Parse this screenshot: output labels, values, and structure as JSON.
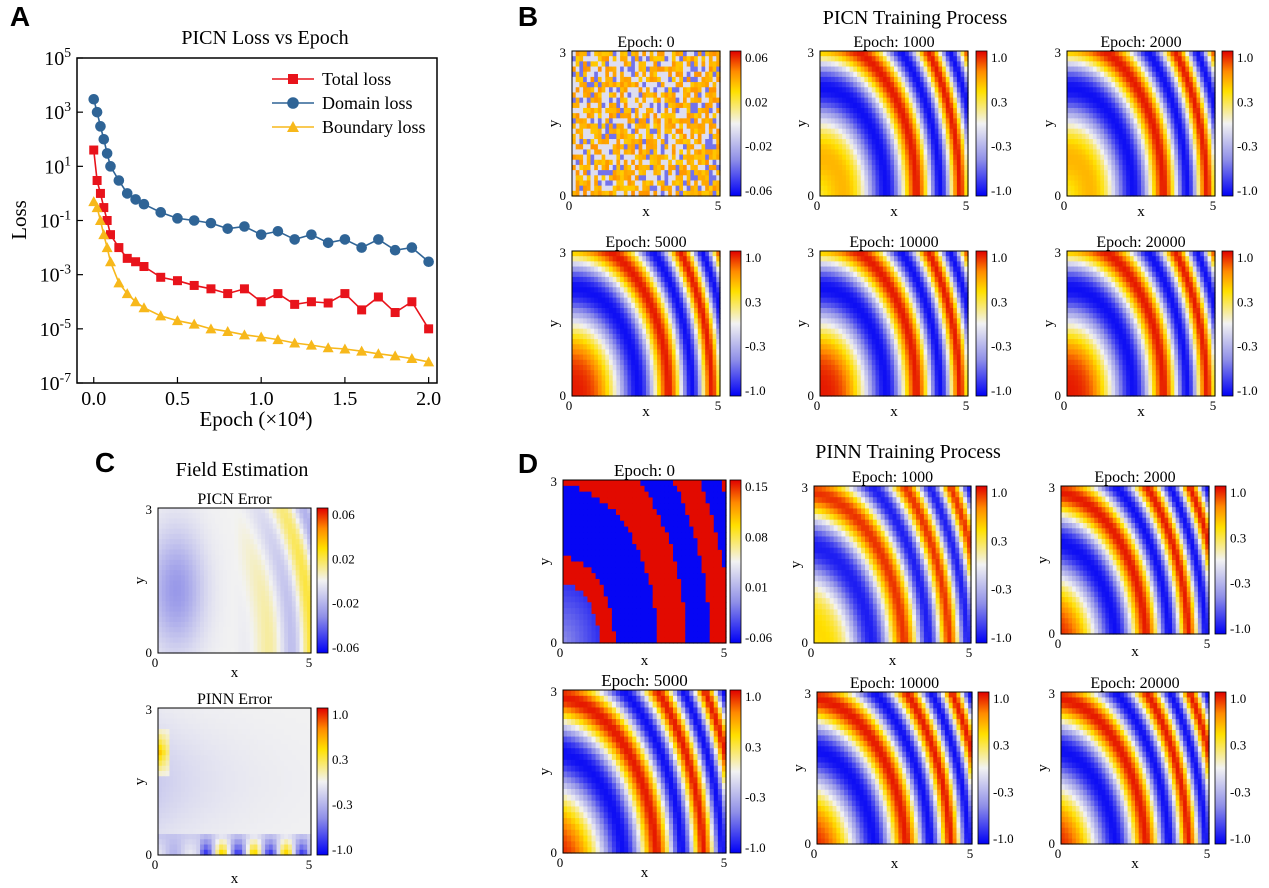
{
  "panel_labels": [
    "A",
    "B",
    "C",
    "D"
  ],
  "chart_data": [
    {
      "type": "line",
      "panel": "A",
      "title": "PICN Loss vs Epoch",
      "xlabel": "Epoch (×10⁴)",
      "ylabel": "Loss",
      "xlim": [
        -0.1,
        2.05
      ],
      "ylim_log10": [
        -7,
        5
      ],
      "y_scale": "log",
      "x_ticks": [
        "0.0",
        "0.5",
        "1.0",
        "1.5",
        "2.0"
      ],
      "y_ticks": [
        "10^5",
        "10^3",
        "10^1",
        "10^-1",
        "10^-3",
        "10^-5",
        "10^-7"
      ],
      "legend_position": "top-right",
      "series": [
        {
          "name": "Total loss",
          "color": "#e8131b",
          "marker": "square",
          "x": [
            0.0,
            0.02,
            0.04,
            0.06,
            0.08,
            0.1,
            0.15,
            0.2,
            0.25,
            0.3,
            0.4,
            0.5,
            0.6,
            0.7,
            0.8,
            0.9,
            1.0,
            1.1,
            1.2,
            1.3,
            1.4,
            1.5,
            1.6,
            1.7,
            1.8,
            1.9,
            2.0
          ],
          "y": [
            40,
            3,
            1,
            0.3,
            0.1,
            0.03,
            0.01,
            0.004,
            0.003,
            0.002,
            0.0008,
            0.0006,
            0.0004,
            0.0003,
            0.0002,
            0.0003,
            0.0001,
            0.0002,
            8e-05,
            0.0001,
            9e-05,
            0.0002,
            5e-05,
            0.00015,
            4e-05,
            0.0001,
            1e-05
          ]
        },
        {
          "name": "Domain loss",
          "color": "#2f6496",
          "marker": "circle",
          "x": [
            0.0,
            0.02,
            0.04,
            0.06,
            0.08,
            0.1,
            0.15,
            0.2,
            0.25,
            0.3,
            0.4,
            0.5,
            0.6,
            0.7,
            0.8,
            0.9,
            1.0,
            1.1,
            1.2,
            1.3,
            1.4,
            1.5,
            1.6,
            1.7,
            1.8,
            1.9,
            2.0
          ],
          "y": [
            3000,
            1000,
            300,
            100,
            30,
            10,
            3,
            1,
            0.6,
            0.4,
            0.2,
            0.12,
            0.1,
            0.08,
            0.05,
            0.06,
            0.03,
            0.04,
            0.02,
            0.03,
            0.015,
            0.02,
            0.01,
            0.02,
            0.008,
            0.01,
            0.003
          ]
        },
        {
          "name": "Boundary loss",
          "color": "#f7b81b",
          "marker": "triangle",
          "x": [
            0.0,
            0.02,
            0.04,
            0.06,
            0.08,
            0.1,
            0.15,
            0.2,
            0.25,
            0.3,
            0.4,
            0.5,
            0.6,
            0.7,
            0.8,
            0.9,
            1.0,
            1.1,
            1.2,
            1.3,
            1.4,
            1.5,
            1.6,
            1.7,
            1.8,
            1.9,
            2.0
          ],
          "y": [
            0.5,
            0.3,
            0.1,
            0.03,
            0.01,
            0.003,
            0.0005,
            0.0002,
            0.0001,
            6e-05,
            3e-05,
            2e-05,
            1.5e-05,
            1e-05,
            8e-06,
            6e-06,
            5e-06,
            4e-06,
            3e-06,
            2.5e-06,
            2e-06,
            1.8e-06,
            1.5e-06,
            1.2e-06,
            1e-06,
            8e-07,
            6e-07
          ]
        }
      ]
    },
    {
      "type": "heatmap",
      "panel": "B",
      "title": "PICN Training Process",
      "xlabel": "x",
      "ylabel": "y",
      "xlim": [
        0,
        5
      ],
      "ylim": [
        0,
        3
      ],
      "subplots": [
        {
          "title": "Epoch: 0",
          "pattern": "noise",
          "colorbar": [
            "0.06",
            "0.02",
            "-0.02",
            "-0.06"
          ]
        },
        {
          "title": "Epoch: 1000",
          "pattern": "wave_partial",
          "colorbar": [
            "1.0",
            "0.3",
            "-0.3",
            "-1.0"
          ]
        },
        {
          "title": "Epoch: 2000",
          "pattern": "wave_partial",
          "colorbar": [
            "1.0",
            "0.3",
            "-0.3",
            "-1.0"
          ]
        },
        {
          "title": "Epoch: 5000",
          "pattern": "wave",
          "colorbar": [
            "1.0",
            "0.3",
            "-0.3",
            "-1.0"
          ]
        },
        {
          "title": "Epoch: 10000",
          "pattern": "wave",
          "colorbar": [
            "1.0",
            "0.3",
            "-0.3",
            "-1.0"
          ]
        },
        {
          "title": "Epoch: 20000",
          "pattern": "wave",
          "colorbar": [
            "1.0",
            "0.3",
            "-0.3",
            "-1.0"
          ]
        }
      ]
    },
    {
      "type": "heatmap",
      "panel": "C",
      "title": "Field Estimation",
      "xlabel": "x",
      "ylabel": "y",
      "xlim": [
        0,
        5
      ],
      "ylim": [
        0,
        3
      ],
      "subplots": [
        {
          "title": "PICN Error",
          "pattern": "error_picn",
          "colorbar": [
            "0.06",
            "0.02",
            "-0.02",
            "-0.06"
          ]
        },
        {
          "title": "PINN Error",
          "pattern": "error_pinn",
          "colorbar": [
            "1.0",
            "0.3",
            "-0.3",
            "-1.0"
          ]
        }
      ]
    },
    {
      "type": "heatmap",
      "panel": "D",
      "title": "PINN Training Process",
      "xlabel": "x",
      "ylabel": "y",
      "xlim": [
        0,
        5
      ],
      "ylim": [
        0,
        3
      ],
      "subplots": [
        {
          "title": "Epoch: 0",
          "pattern": "bands",
          "colorbar": [
            "0.15",
            "0.08",
            "0.01",
            "-0.06"
          ]
        },
        {
          "title": "Epoch: 1000",
          "pattern": "wave_pinn_early",
          "colorbar": [
            "1.0",
            "0.3",
            "-0.3",
            "-1.0"
          ]
        },
        {
          "title": "Epoch: 2000",
          "pattern": "wave_pinn",
          "colorbar": [
            "1.0",
            "0.3",
            "-0.3",
            "-1.0"
          ]
        },
        {
          "title": "Epoch: 5000",
          "pattern": "wave_pinn",
          "colorbar": [
            "1.0",
            "0.3",
            "-0.3",
            "-1.0"
          ]
        },
        {
          "title": "Epoch: 10000",
          "pattern": "wave_pinn",
          "colorbar": [
            "1.0",
            "0.3",
            "-0.3",
            "-1.0"
          ]
        },
        {
          "title": "Epoch: 20000",
          "pattern": "wave_pinn",
          "colorbar": [
            "1.0",
            "0.3",
            "-0.3",
            "-1.0"
          ]
        }
      ]
    }
  ]
}
